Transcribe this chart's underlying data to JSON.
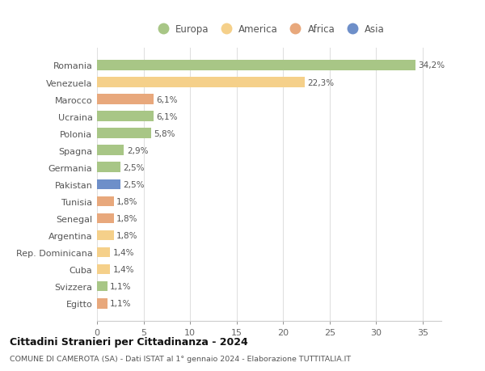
{
  "countries": [
    "Romania",
    "Venezuela",
    "Marocco",
    "Ucraina",
    "Polonia",
    "Spagna",
    "Germania",
    "Pakistan",
    "Tunisia",
    "Senegal",
    "Argentina",
    "Rep. Dominicana",
    "Cuba",
    "Svizzera",
    "Egitto"
  ],
  "values": [
    34.2,
    22.3,
    6.1,
    6.1,
    5.8,
    2.9,
    2.5,
    2.5,
    1.8,
    1.8,
    1.8,
    1.4,
    1.4,
    1.1,
    1.1
  ],
  "labels": [
    "34,2%",
    "22,3%",
    "6,1%",
    "6,1%",
    "5,8%",
    "2,9%",
    "2,5%",
    "2,5%",
    "1,8%",
    "1,8%",
    "1,8%",
    "1,4%",
    "1,4%",
    "1,1%",
    "1,1%"
  ],
  "continents": [
    "Europa",
    "America",
    "Africa",
    "Europa",
    "Europa",
    "Europa",
    "Europa",
    "Asia",
    "Africa",
    "Africa",
    "America",
    "America",
    "America",
    "Europa",
    "Africa"
  ],
  "colors": {
    "Europa": "#a8c686",
    "America": "#f5d08a",
    "Africa": "#e8a87c",
    "Asia": "#6e8fc9"
  },
  "legend_order": [
    "Europa",
    "America",
    "Africa",
    "Asia"
  ],
  "title": "Cittadini Stranieri per Cittadinanza - 2024",
  "subtitle": "COMUNE DI CAMEROTA (SA) - Dati ISTAT al 1° gennaio 2024 - Elaborazione TUTTITALIA.IT",
  "xlim": [
    0,
    37
  ],
  "xticks": [
    0,
    5,
    10,
    15,
    20,
    25,
    30,
    35
  ],
  "bg_color": "#ffffff",
  "grid_color": "#e0e0e0",
  "bar_height": 0.6
}
